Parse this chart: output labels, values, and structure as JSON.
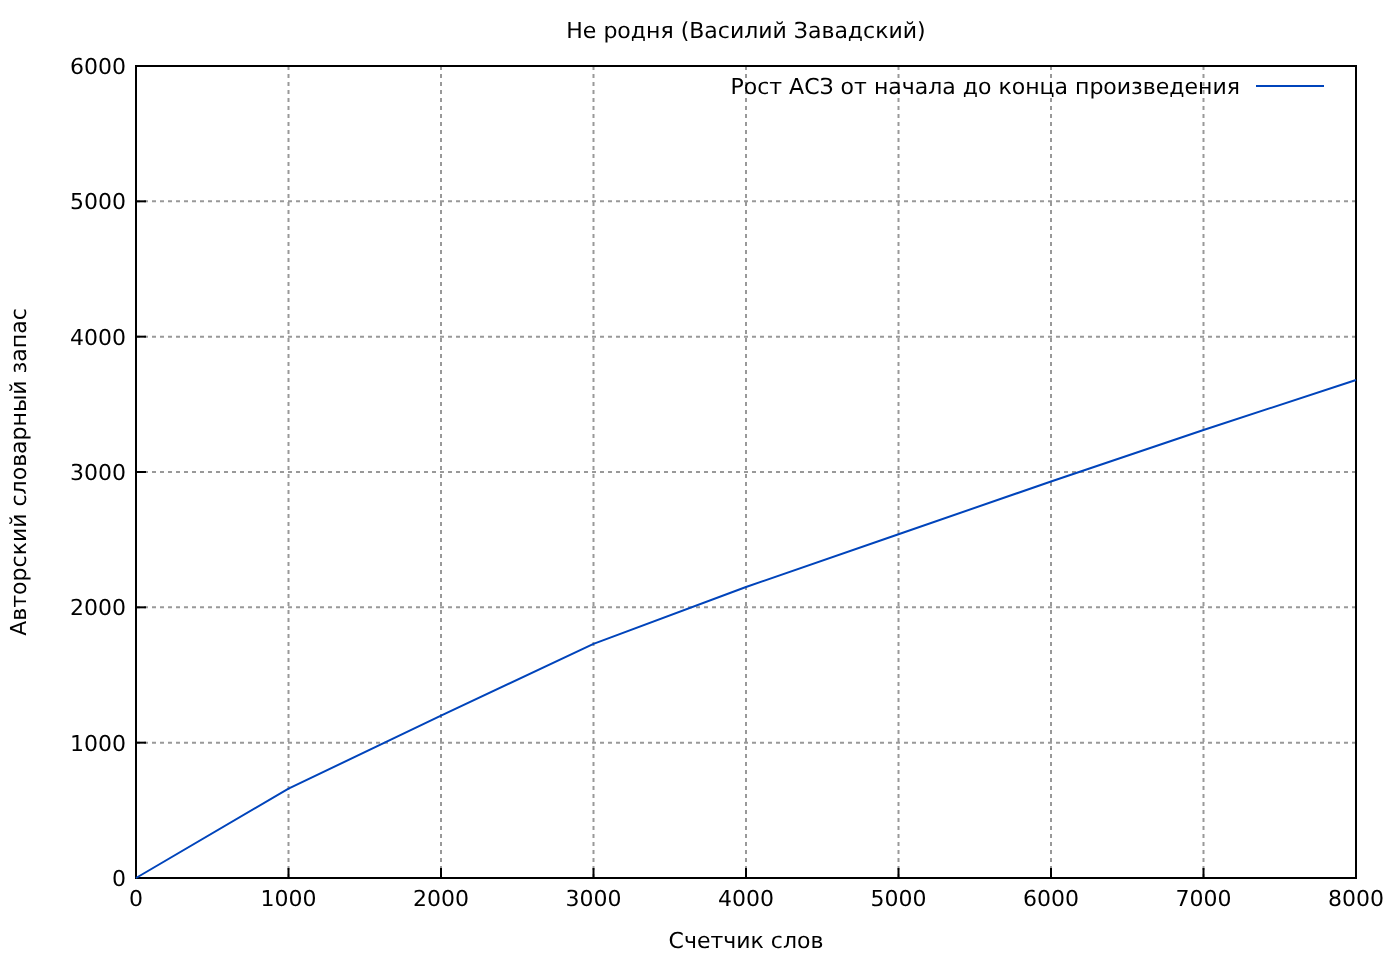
{
  "chart_data": {
    "type": "line",
    "title": "Не родня (Василий Завадский)",
    "xlabel": "Счетчик слов",
    "ylabel": "Авторский словарный запас",
    "x": [
      0,
      1000,
      2000,
      3000,
      4000,
      5000,
      6000,
      7000,
      8000
    ],
    "series": [
      {
        "name": "Рост АСЗ от начала до конца произведения",
        "color": "#0044bb",
        "values": [
          0,
          660,
          1200,
          1730,
          2150,
          2540,
          2930,
          3310,
          3680
        ]
      }
    ],
    "xlim": [
      0,
      8000
    ],
    "xticks": [
      0,
      1000,
      2000,
      3000,
      4000,
      5000,
      6000,
      7000,
      8000
    ],
    "ylim": [
      0,
      6000
    ],
    "yticks": [
      0,
      1000,
      2000,
      3000,
      4000,
      5000,
      6000
    ],
    "grid": true,
    "legend": "top right",
    "marker": "none",
    "line_style": "solid"
  }
}
